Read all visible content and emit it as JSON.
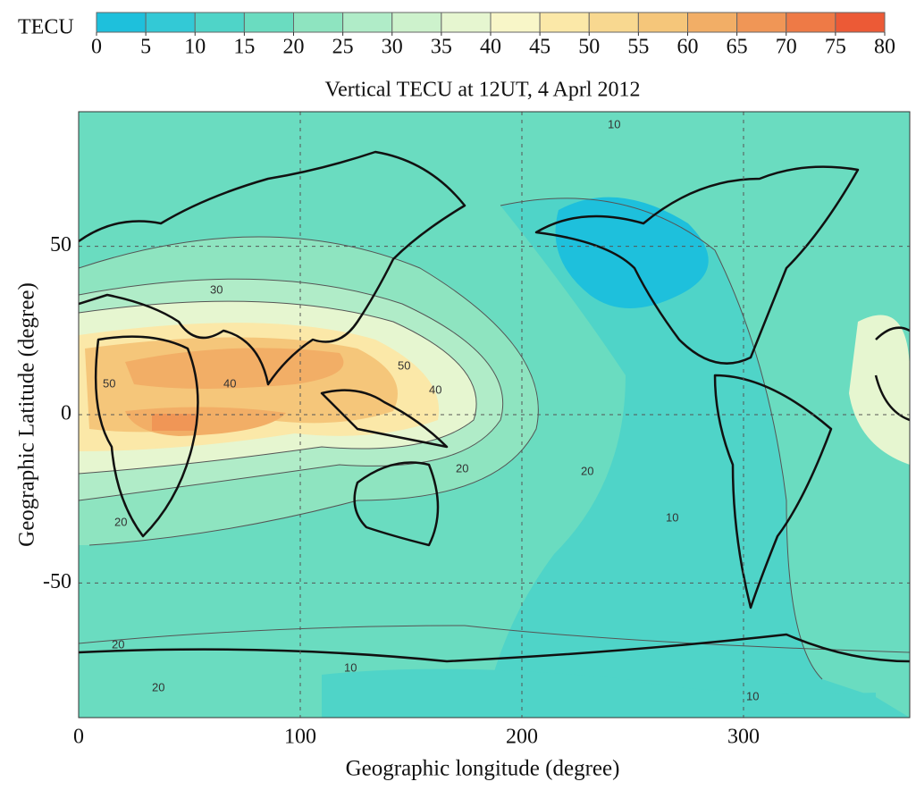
{
  "chart_data": {
    "type": "contour-map",
    "title": "Vertical TECU at 12UT, 4 Aprl 2012",
    "xlabel": "Geographic longitude (degree)",
    "ylabel": "Geographic Latitude (degree)",
    "xlim": [
      0,
      375
    ],
    "ylim": [
      -90,
      90
    ],
    "xticks": [
      0,
      100,
      200,
      300
    ],
    "yticks": [
      50,
      0,
      -50
    ],
    "grid": true,
    "colorbar": {
      "label": "TECU",
      "ticks": [
        0,
        5,
        10,
        15,
        20,
        25,
        30,
        35,
        40,
        45,
        50,
        55,
        60,
        65,
        70,
        75,
        80
      ],
      "colors": [
        "#1ec0dc",
        "#33c9d6",
        "#4fd4c8",
        "#6adcc0",
        "#8ee4c0",
        "#b0ecc8",
        "#cdf2cc",
        "#e6f6d0",
        "#f8f6c8",
        "#fbe8a8",
        "#f8d890",
        "#f5c67a",
        "#f2ae66",
        "#f09656",
        "#ee7a46",
        "#ec5a36"
      ]
    },
    "contour_labels": [
      30,
      40,
      50,
      50,
      40,
      20,
      20,
      10,
      10,
      10,
      20,
      20,
      10,
      20
    ]
  }
}
